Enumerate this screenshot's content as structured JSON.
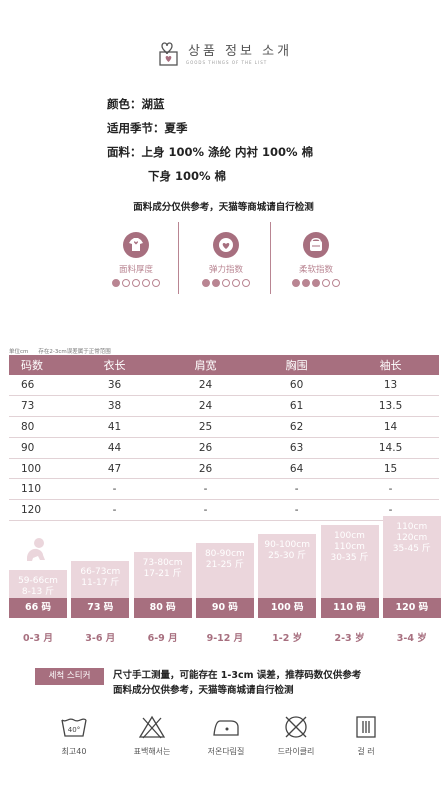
{
  "header": {
    "title": "상품 정보 소개",
    "subtitle": "GOODS THINGS OF THE LIST"
  },
  "info": {
    "color_label": "颜色：",
    "color_value": "湖蓝",
    "season_label": "适用季节：",
    "season_value": "夏季",
    "fabric_label": "面料：",
    "fabric_top": "上身 100% 涤纶  内衬 100% 棉",
    "fabric_bottom": "下身 100% 棉"
  },
  "notice": "面料成分仅供参考，天猫等商城请自行检测",
  "indicators": [
    {
      "label": "面料厚度",
      "icon": "shirt-icon",
      "level": 1,
      "max": 5
    },
    {
      "label": "弹力指数",
      "icon": "heart-icon",
      "level": 2,
      "max": 5
    },
    {
      "label": "柔软指数",
      "icon": "cushion-icon",
      "level": 3,
      "max": 5
    }
  ],
  "table": {
    "unit": "单位cm",
    "note": "存在2-3cm误差属于正常范围",
    "headers": [
      "码数",
      "衣长",
      "肩宽",
      "胸围",
      "袖长"
    ],
    "rows": [
      [
        "66",
        "36",
        "24",
        "60",
        "13"
      ],
      [
        "73",
        "38",
        "24",
        "61",
        "13.5"
      ],
      [
        "80",
        "41",
        "25",
        "62",
        "14"
      ],
      [
        "90",
        "44",
        "26",
        "63",
        "14.5"
      ],
      [
        "100",
        "47",
        "26",
        "64",
        "15"
      ],
      [
        "110",
        "-",
        "-",
        "-",
        "-"
      ],
      [
        "120",
        "-",
        "-",
        "-",
        "-"
      ]
    ]
  },
  "steps": [
    {
      "height_range": "59-66cm",
      "weight_range": "8-13 斤",
      "size": "66 码",
      "age": "0-3 月"
    },
    {
      "height_range": "66-73cm",
      "weight_range": "11-17 斤",
      "size": "73 码",
      "age": "3-6 月"
    },
    {
      "height_range": "73-80cm",
      "weight_range": "17-21 斤",
      "size": "80 码",
      "age": "6-9 月"
    },
    {
      "height_range": "80-90cm",
      "weight_range": "21-25 斤",
      "size": "90 码",
      "age": "9-12 月"
    },
    {
      "height_range": "90-100cm",
      "weight_range": "25-30 斤",
      "size": "100 码",
      "age": "1-2 岁"
    },
    {
      "height_range": "100cm",
      "height_range_2": "110cm",
      "weight_range": "30-35 斤",
      "size": "110 码",
      "age": "2-3 岁"
    },
    {
      "height_range": "110cm",
      "height_range_2": "120cm",
      "weight_range": "35-45 斤",
      "size": "120 码",
      "age": "3-4 岁"
    }
  ],
  "sticker": {
    "tag": "세척 스티커",
    "line1": "尺寸手工测量，可能存在 1-3cm 误差，推荐码数仅供参考",
    "line2": "面料成分仅供参考，天猫等商城请自行检测"
  },
  "care": [
    {
      "label": "최고40",
      "icon": "wash-40-icon",
      "temp": "40°"
    },
    {
      "label": "표백해서는",
      "icon": "no-bleach-icon"
    },
    {
      "label": "저온다림질",
      "icon": "iron-low-icon"
    },
    {
      "label": "드라이클리",
      "icon": "no-dry-clean-icon"
    },
    {
      "label": "걸 러",
      "icon": "hang-dry-icon"
    }
  ],
  "colors": {
    "accent": "#a76f7f",
    "accent_light": "#ebd6dc",
    "text_accent": "#b98592"
  }
}
